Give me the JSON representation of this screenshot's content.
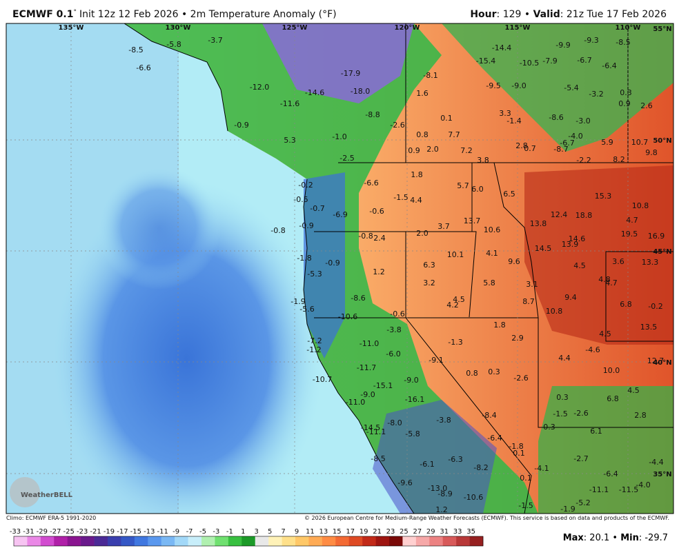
{
  "header": {
    "model": "ECMWF 0.1",
    "degree": "°",
    "description": "Init 12z 12 Feb 2026 • 2m Temperature Anomaly (°F)",
    "hour_label": "Hour",
    "hour_value": ": 129 • ",
    "valid_label": "Valid",
    "valid_value": ": 21z Tue 17 Feb 2026"
  },
  "longitudes": [
    "135°W",
    "130°W",
    "125°W",
    "120°W",
    "115°W",
    "110°W"
  ],
  "latitudes": [
    "55°N",
    "50°N",
    "45°N",
    "40°N",
    "35°N"
  ],
  "map_values": [
    "-8.5",
    "-6.6",
    "-5.8",
    "-3.7",
    "-12.0",
    "-11.6",
    "-14.6",
    "-17.9",
    "-18.0",
    "-8.8",
    "-2.6",
    "1.6",
    "-8.1",
    "-14.4",
    "-15.4",
    "-10.5",
    "-7.9",
    "-9.9",
    "-9.3",
    "-8.5",
    "-6.7",
    "-6.4",
    "-9.5",
    "-9.0",
    "-5.4",
    "-3.2",
    "0.3",
    "0.9",
    "2.6",
    "3.3",
    "-1.4",
    "-8.6",
    "-3.0",
    "-4.0",
    "-6.7",
    "-8.7",
    "5.9",
    "10.7",
    "9.8",
    "8.2",
    "-2.2",
    "2.8",
    "0.7",
    "3.8",
    "0.1",
    "7.7",
    "7.2",
    "0.8",
    "0.9",
    "2.0",
    "-0.9",
    "5.3",
    "-1.0",
    "-2.5",
    "-0.2",
    "-0.5",
    "-0.7",
    "-0.8",
    "-0.9",
    "-6.9",
    "-6.6",
    "-0.6",
    "1.8",
    "-1.5",
    "4.4",
    "5.7",
    "6.0",
    "6.5",
    "13.7",
    "10.6",
    "12.4",
    "18.8",
    "15.3",
    "10.8",
    "4.7",
    "19.5",
    "16.9",
    "13.8",
    "14.5",
    "13.9",
    "14.6",
    "-0.8",
    "2.4",
    "2.0",
    "3.7",
    "10.1",
    "4.1",
    "9.6",
    "4.5",
    "3.6",
    "13.3",
    "4.8",
    "4.7",
    "-1.8",
    "-0.9",
    "-5.3",
    "1.2",
    "6.3",
    "3.2",
    "5.8",
    "3.1",
    "4.5",
    "4.2",
    "8.7",
    "9.4",
    "10.8",
    "6.8",
    "-0.2",
    "13.5",
    "4.5",
    "-1.9",
    "-5.6",
    "-8.6",
    "-10.6",
    "-0.6",
    "-3.8",
    "1.8",
    "2.9",
    "-1.3",
    "-11.0",
    "-7.2",
    "-1.2",
    "-6.0",
    "-9.1",
    "4.4",
    "-4.6",
    "10.0",
    "12.7",
    "-11.7",
    "0.8",
    "0.3",
    "-2.6",
    "-10.7",
    "-15.1",
    "-9.0",
    "-9.0",
    "-11.0",
    "-16.1",
    "0.3",
    "6.8",
    "4.5",
    "-8.4",
    "-1.5",
    "-2.6",
    "2.8",
    "-3.8",
    "-8.0",
    "-14.5",
    "-11.1",
    "-5.8",
    "0.3",
    "6.1",
    "-6.4",
    "-1.8",
    "0.1",
    "-8.5",
    "-6.1",
    "-6.3",
    "-8.2",
    "-4.1",
    "-2.7",
    "-6.4",
    "-4.4",
    "-4.0",
    "0.1",
    "-9.6",
    "-13.0",
    "-8.9",
    "-10.6",
    "-11.1",
    "-11.5",
    "-5.2",
    "-1.9",
    "-1.5",
    "1.2"
  ],
  "logo": "WeatherBELL",
  "footer": {
    "climo": "Climo: ECMWF ERA-5 1991-2020",
    "copyright": "© 2026 European Centre for Medium-Range Weather Forecasts (ECMWF). This service is based on data and products of the ECMWF."
  },
  "colorbar": {
    "labels": [
      -33,
      -31,
      -29,
      -27,
      -25,
      -23,
      -21,
      -19,
      -17,
      -15,
      -13,
      -11,
      -9,
      -7,
      -5,
      -3,
      -1,
      1,
      3,
      5,
      7,
      9,
      11,
      13,
      15,
      17,
      19,
      21,
      23,
      25,
      27,
      29,
      31,
      33,
      35
    ],
    "colors": [
      "#f7c4f2",
      "#ea88e6",
      "#d24cd0",
      "#b020a8",
      "#8a1590",
      "#6a1a8c",
      "#4b2a96",
      "#3a3fae",
      "#3558c6",
      "#4078e0",
      "#5a98ee",
      "#7ab8f4",
      "#a2d8f8",
      "#c8eefa",
      "#b0f0b0",
      "#70e070",
      "#38c040",
      "#1c9a28",
      "#e8e8e8",
      "#fff2b8",
      "#ffe08a",
      "#ffc868",
      "#ffab55",
      "#ff8c44",
      "#f36a34",
      "#de4a24",
      "#c22a18",
      "#9e1510",
      "#7a0a08",
      "#ffd0d0",
      "#f6a8a8",
      "#ec8282",
      "#d85a5a",
      "#b83838",
      "#962020"
    ]
  },
  "stats": {
    "max_label": "Max",
    "max_value": ": 20.1 • ",
    "min_label": "Min",
    "min_value": ": -29.7"
  }
}
